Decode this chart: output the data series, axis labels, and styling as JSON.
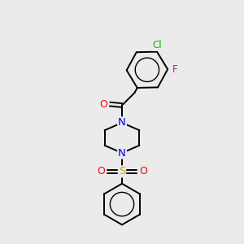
{
  "background_color": "#ebebeb",
  "bond_color": "#000000",
  "atom_colors": {
    "Cl": "#00bb00",
    "F": "#cc00cc",
    "O": "#ff0000",
    "N": "#0000ee",
    "S": "#ccaa00",
    "C": "#000000"
  },
  "figsize": [
    3.0,
    3.0
  ],
  "dpi": 100,
  "line_width": 1.4,
  "font_size": 8.5
}
